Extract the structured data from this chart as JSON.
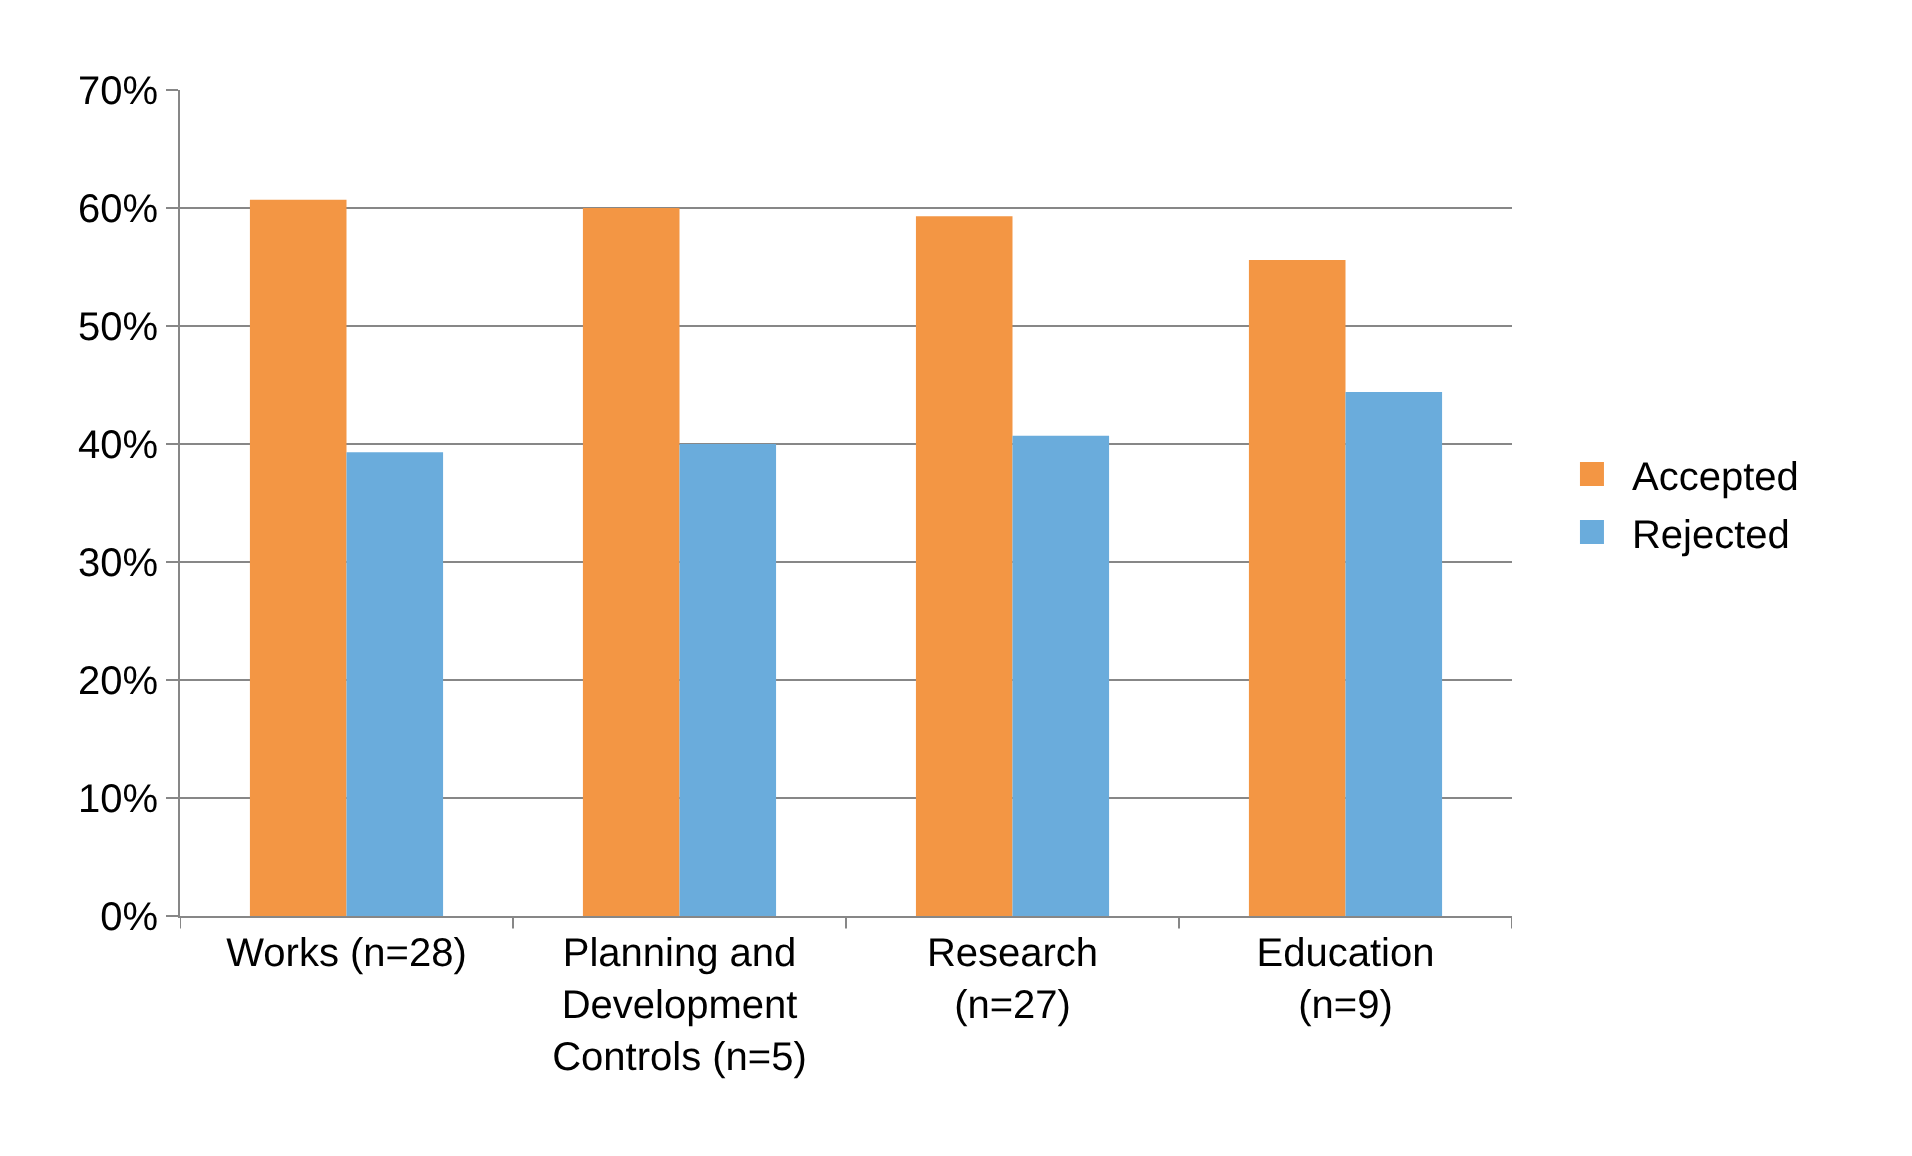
{
  "chart_data": {
    "type": "bar",
    "categories": [
      "Works (n=28)",
      "Planning and\nDevelopment\nControls (n=5)",
      "Research\n(n=27)",
      "Education\n(n=9)"
    ],
    "series": [
      {
        "name": "Accepted",
        "color": "#f39644",
        "values": [
          60.7,
          60.0,
          59.3,
          55.6
        ]
      },
      {
        "name": "Rejected",
        "color": "#6aacdc",
        "values": [
          39.3,
          40.0,
          40.7,
          44.4
        ]
      }
    ],
    "ylim": [
      0,
      70
    ],
    "yticks": [
      {
        "value": 0,
        "label": "0%"
      },
      {
        "value": 10,
        "label": "10%"
      },
      {
        "value": 20,
        "label": "20%"
      },
      {
        "value": 30,
        "label": "30%"
      },
      {
        "value": 40,
        "label": "40%"
      },
      {
        "value": 50,
        "label": "50%"
      },
      {
        "value": 60,
        "label": "60%"
      },
      {
        "value": 70,
        "label": "70%"
      }
    ],
    "grid": "y",
    "legend": "right"
  }
}
